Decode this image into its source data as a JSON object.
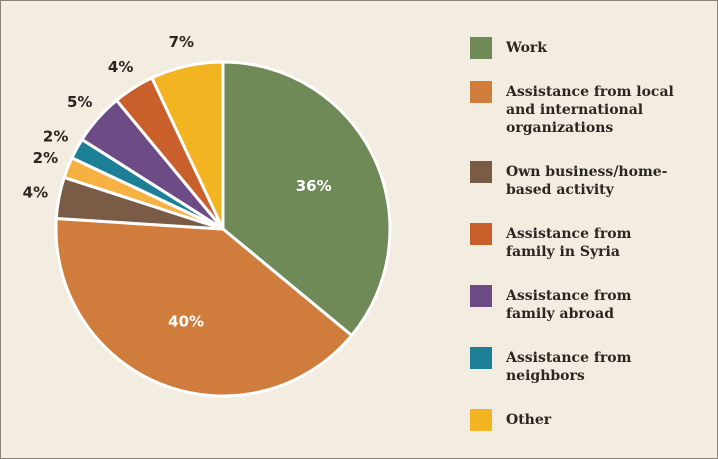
{
  "chart_data": {
    "type": "pie",
    "categories": [
      "Work",
      "Assistance from local\nand international\norganizations",
      "Own business/home-\nbased activity",
      null,
      "Assistance from\nneighbors",
      "Assistance from\nfamily abroad",
      "Assistance from\nfamily in Syria",
      "Other"
    ],
    "values": [
      36,
      40,
      4,
      2,
      2,
      5,
      4,
      7
    ],
    "value_labels": [
      "36%",
      "40%",
      "4%",
      "2%",
      "2%",
      "5%",
      "4%",
      "7%"
    ],
    "colors": [
      "#6f8a57",
      "#d07c3c",
      "#7a5b45",
      "#f6b143",
      "#1d7f96",
      "#6d4b85",
      "#c9602c",
      "#f2b420"
    ],
    "legend_order": [
      0,
      1,
      2,
      6,
      5,
      4,
      7
    ]
  }
}
